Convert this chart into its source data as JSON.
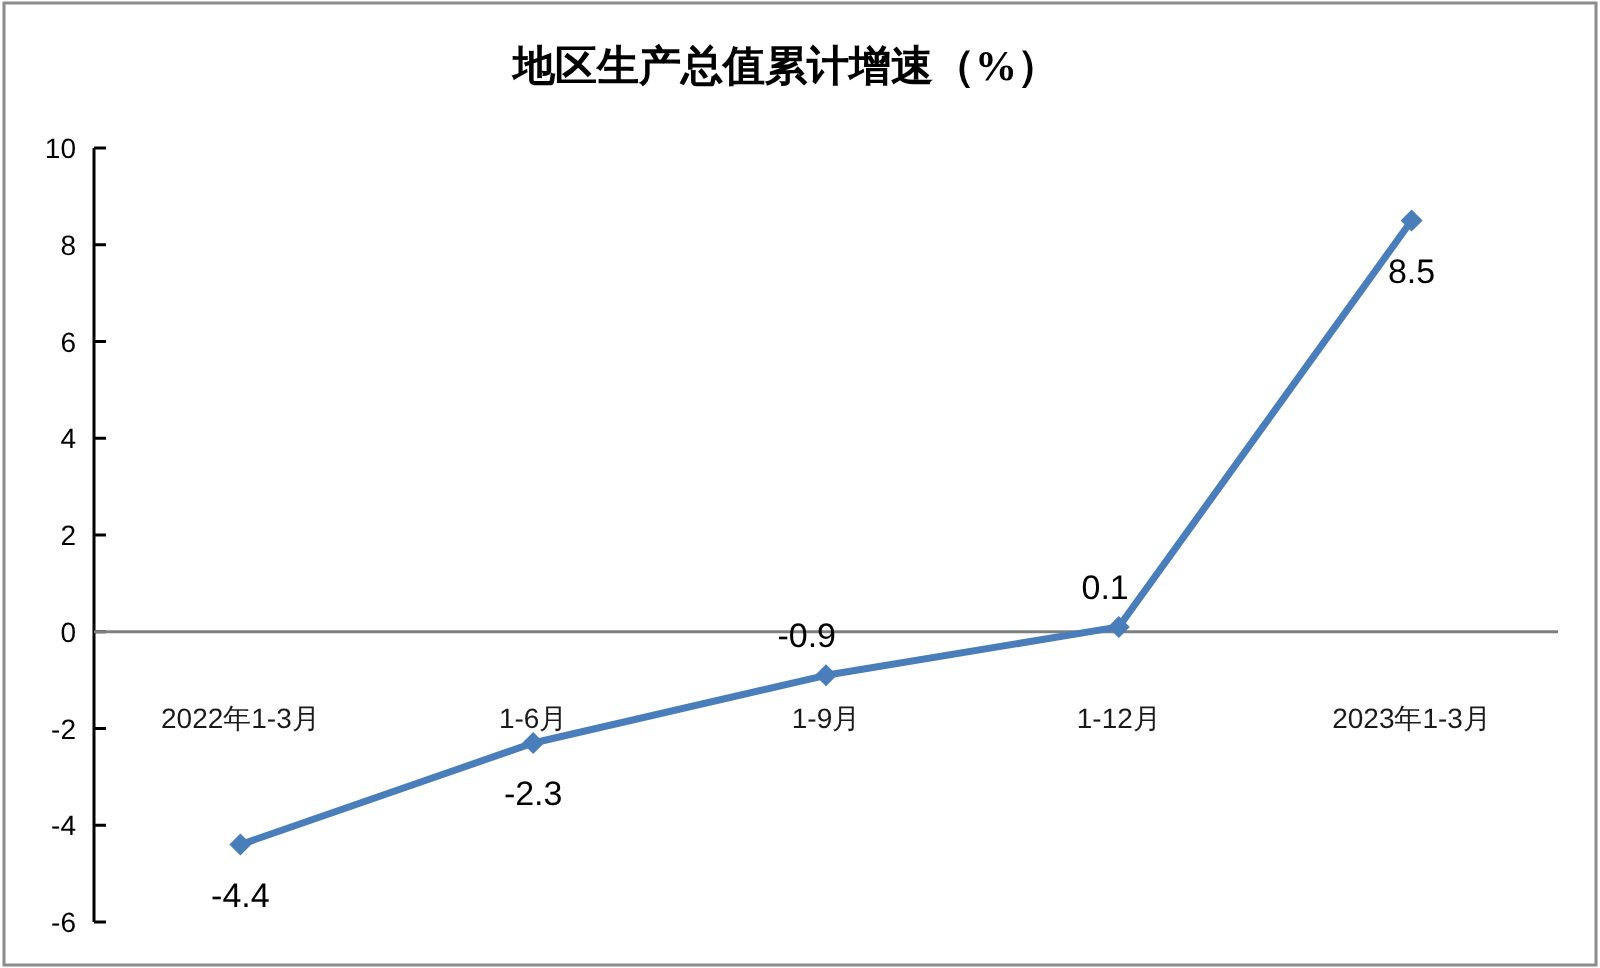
{
  "chart_data": {
    "type": "line",
    "title": "地区生产总值累计增速（%）",
    "categories": [
      "2022年1-3月",
      "1-6月",
      "1-9月",
      "1-12月",
      "2023年1-3月"
    ],
    "series": [
      {
        "color": "#4a7ebb",
        "values": [
          -4.4,
          -2.3,
          -0.9,
          0.1,
          8.5
        ]
      }
    ],
    "ylim": [
      -6,
      10
    ],
    "yticks": [
      -6,
      -4,
      -2,
      0,
      2,
      4,
      6,
      8,
      10
    ],
    "data_labels": true,
    "marker": "diamond"
  }
}
